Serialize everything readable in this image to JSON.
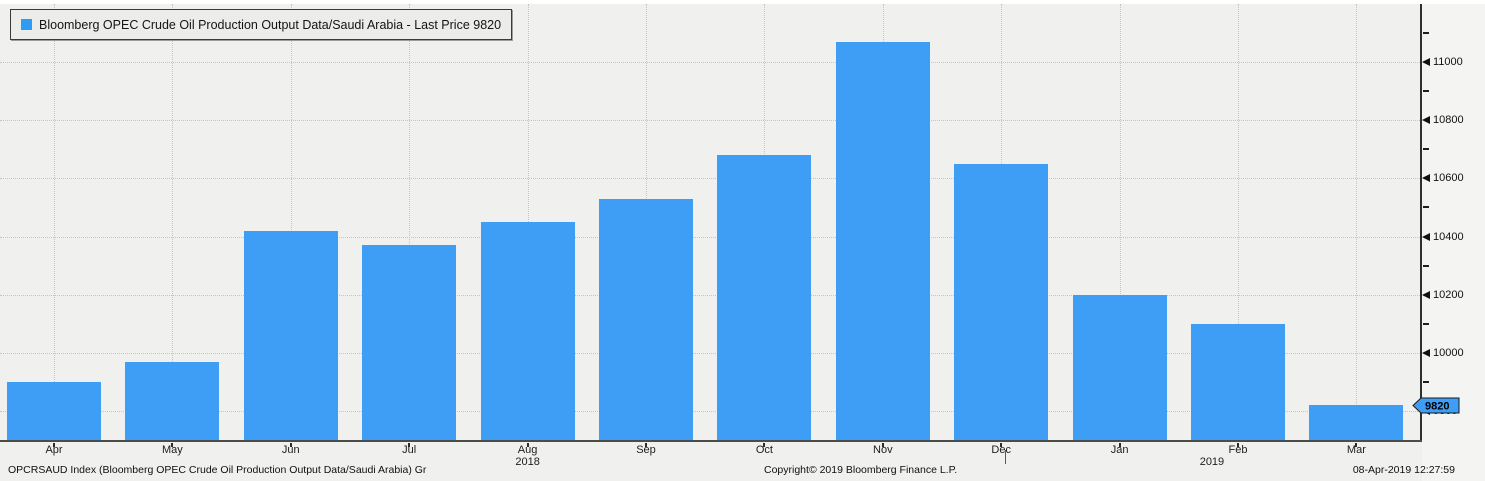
{
  "legend": {
    "swatch_color": "#2e9cf5",
    "label": "Bloomberg OPEC Crude Oil Production Output Data/Saudi Arabia - Last Price 9820"
  },
  "chart_data": {
    "type": "bar",
    "title": "Bloomberg OPEC Crude Oil Production Output Data/Saudi Arabia - Last Price",
    "categories": [
      "Apr",
      "May",
      "Jun",
      "Jul",
      "Aug",
      "Sep",
      "Oct",
      "Nov",
      "Dec",
      "Jan",
      "Feb",
      "Mar"
    ],
    "values": [
      9900,
      9970,
      10420,
      10370,
      10450,
      10530,
      10680,
      11070,
      10650,
      10200,
      10100,
      9820
    ],
    "series_name": "Last Price",
    "last_price": 9820,
    "xlabel": "",
    "ylabel": "",
    "ylim": [
      9700,
      11200
    ],
    "y_major_ticks": [
      9800,
      10000,
      10200,
      10400,
      10600,
      10800,
      11000
    ],
    "y_minor_step": 100,
    "grid": true,
    "legend_position": "top-left",
    "bar_color": "#3e9df5"
  },
  "y_axis": {
    "last_price_label": "9820",
    "badge_color": "#3e9df5"
  },
  "x_axis": {
    "years": [
      {
        "label": "2018",
        "month_index": 4.0
      },
      {
        "label": "2019",
        "month_index": 9.78
      }
    ],
    "year_divider_after": "Dec"
  },
  "footer": {
    "left": "OPCRSAUD Index (Bloomberg OPEC Crude Oil Production Output Data/Saudi Arabia) Gr",
    "copyright": "Copyright© 2019 Bloomberg Finance L.P.",
    "timestamp": "08-Apr-2019 12:27:59"
  }
}
